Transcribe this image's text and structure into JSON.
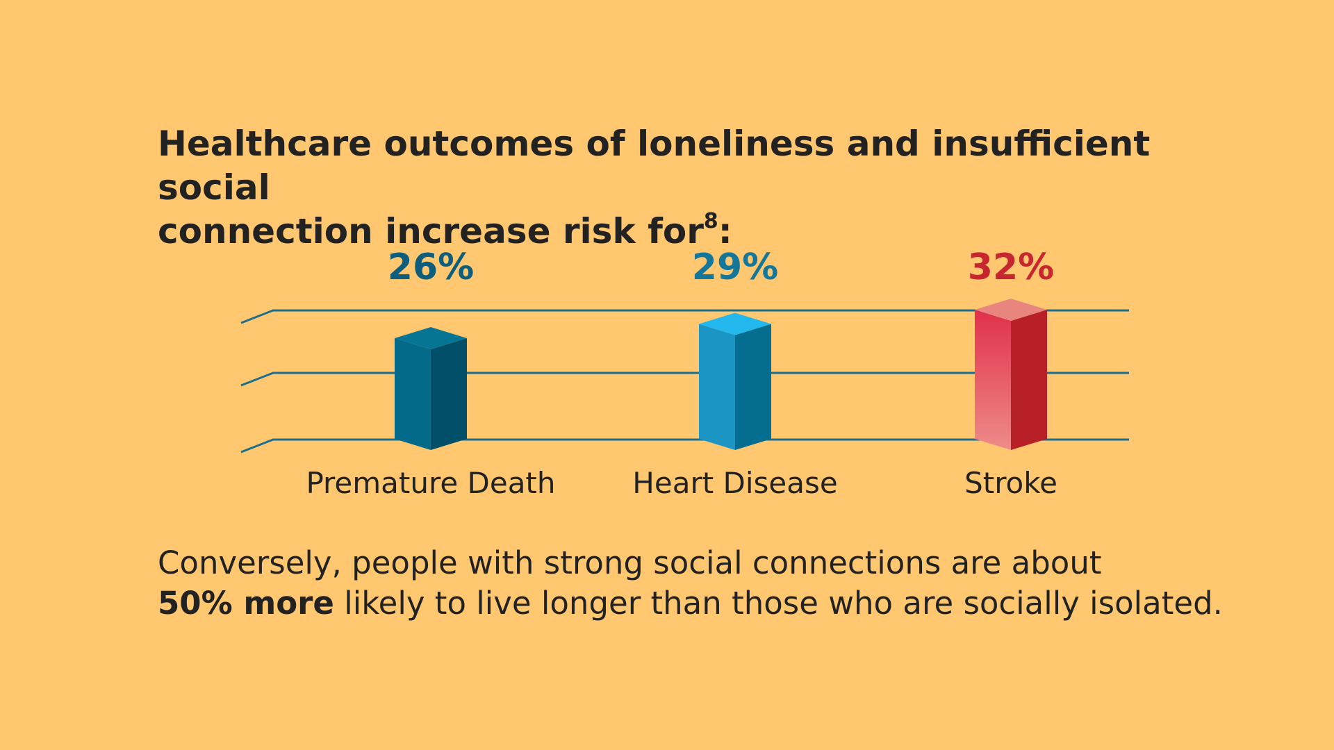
{
  "title": {
    "line1": "Healthcare outcomes of loneliness and insufficient social",
    "line2": "connection increase risk for",
    "footnote": "8",
    "suffix": ":"
  },
  "footer": {
    "line1": "Conversely, people with strong social connections are about",
    "bold": "50% more",
    "line2_rest": " likely to live longer than those who are socially isolated."
  },
  "colors": {
    "background": "#FFC76F",
    "gridline": "#1B6E8C",
    "premature_death": "#046A8A",
    "heart_disease": "#1896C4",
    "stroke": "#E0384A",
    "label_dark_teal": "#0C5E7C",
    "label_teal": "#13779B",
    "label_red": "#C7252F"
  },
  "chart_data": {
    "type": "bar",
    "categories": [
      "Premature Death",
      "Heart Disease",
      "Stroke"
    ],
    "values": [
      26,
      29,
      32
    ],
    "value_labels": [
      "26%",
      "29%",
      "32%"
    ],
    "title": "Healthcare outcomes of loneliness and insufficient social connection increase risk for",
    "xlabel": "",
    "ylabel": "",
    "grid": true,
    "gridlines": 3
  }
}
